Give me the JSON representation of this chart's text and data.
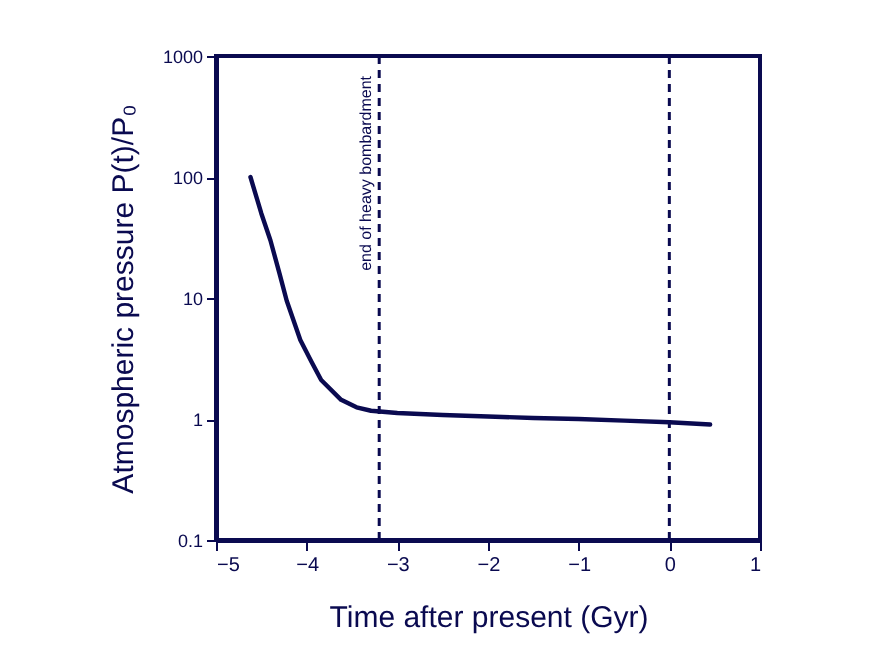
{
  "chart_data": {
    "type": "line",
    "xlabel": "Time after present (Gyr)",
    "ylabel": "Atmospheric pressure P(t)/P₀",
    "x": [
      -4.62,
      -4.5,
      -4.4,
      -4.3,
      -4.22,
      -4.07,
      -3.95,
      -3.84,
      -3.62,
      -3.45,
      -3.29,
      -3.0,
      -2.5,
      -2.0,
      -1.5,
      -1.0,
      -0.5,
      0,
      0.45
    ],
    "series": [
      {
        "color": "#0a0a50",
        "values": [
          100,
          50,
          30,
          16,
          9.5,
          4.5,
          3,
          2.1,
          1.44,
          1.25,
          1.17,
          1.12,
          1.08,
          1.05,
          1.02,
          1.0,
          0.97,
          0.94,
          0.9
        ]
      }
    ],
    "xlim": [
      -5,
      1
    ],
    "xticks": [
      -5,
      -4,
      -3,
      -2,
      -1,
      0,
      1
    ],
    "ylim": [
      0.1,
      1000
    ],
    "yticks": [
      0.1,
      1,
      10,
      100,
      1000
    ],
    "log": "y",
    "grid": false,
    "marker": "none",
    "line_style": "solid",
    "ref_lines": [
      {
        "axis": "x",
        "value": -3.2,
        "label": "end of heavy bombardment",
        "line_style": "dashed"
      },
      {
        "axis": "x",
        "value": 0,
        "line_style": "dashed"
      }
    ]
  }
}
